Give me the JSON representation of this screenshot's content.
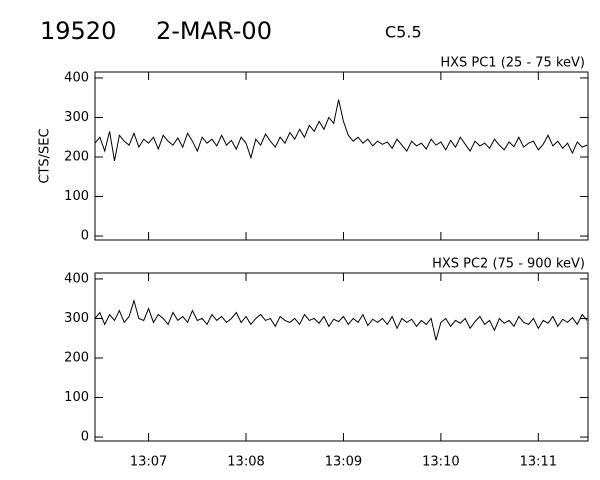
{
  "header": {
    "id": "19520",
    "date": "2-MAR-00",
    "class": "C5.5"
  },
  "chart_data": [
    {
      "type": "line",
      "label": "HXS PC1 (25 - 75 keV)",
      "ylabel": "CTS/SEC",
      "color": "#000000",
      "xlim": [
        6.45,
        11.51
      ],
      "xticks": [
        7,
        8,
        9,
        10,
        11
      ],
      "show_xtick_labels": false,
      "ylim": [
        -10,
        415
      ],
      "yticks": [
        0,
        100,
        200,
        300,
        400
      ],
      "x": [
        6.45,
        6.5,
        6.55,
        6.6,
        6.65,
        6.7,
        6.75,
        6.8,
        6.85,
        6.9,
        6.95,
        7.0,
        7.05,
        7.1,
        7.15,
        7.2,
        7.25,
        7.3,
        7.35,
        7.4,
        7.45,
        7.5,
        7.55,
        7.6,
        7.65,
        7.7,
        7.75,
        7.8,
        7.85,
        7.9,
        7.95,
        8.0,
        8.05,
        8.1,
        8.15,
        8.2,
        8.25,
        8.3,
        8.35,
        8.4,
        8.45,
        8.5,
        8.55,
        8.6,
        8.65,
        8.7,
        8.75,
        8.8,
        8.85,
        8.9,
        8.95,
        9.0,
        9.05,
        9.1,
        9.15,
        9.2,
        9.25,
        9.3,
        9.35,
        9.4,
        9.45,
        9.5,
        9.55,
        9.6,
        9.65,
        9.7,
        9.75,
        9.8,
        9.85,
        9.9,
        9.95,
        10.0,
        10.05,
        10.1,
        10.15,
        10.2,
        10.25,
        10.3,
        10.35,
        10.4,
        10.45,
        10.5,
        10.55,
        10.6,
        10.65,
        10.7,
        10.75,
        10.8,
        10.85,
        10.9,
        10.95,
        11.0,
        11.05,
        11.1,
        11.15,
        11.2,
        11.25,
        11.3,
        11.35,
        11.4,
        11.45,
        11.5
      ],
      "values": [
        235,
        250,
        215,
        265,
        190,
        255,
        240,
        230,
        260,
        225,
        245,
        235,
        250,
        220,
        255,
        240,
        230,
        248,
        225,
        260,
        240,
        215,
        250,
        235,
        245,
        228,
        255,
        230,
        242,
        220,
        250,
        235,
        198,
        245,
        230,
        258,
        240,
        225,
        250,
        235,
        262,
        245,
        270,
        250,
        280,
        265,
        290,
        270,
        300,
        285,
        345,
        290,
        255,
        240,
        250,
        235,
        245,
        228,
        240,
        232,
        238,
        222,
        245,
        230,
        215,
        240,
        228,
        235,
        220,
        245,
        230,
        238,
        218,
        242,
        225,
        250,
        232,
        215,
        240,
        228,
        235,
        222,
        245,
        230,
        218,
        238,
        226,
        250,
        225,
        235,
        240,
        218,
        232,
        255,
        228,
        240,
        222,
        235,
        210,
        238,
        225,
        230
      ]
    },
    {
      "type": "line",
      "label": "HXS PC2 (75 - 900 keV)",
      "color": "#000000",
      "xlim": [
        6.45,
        11.51
      ],
      "xticks": [
        {
          "value": 7,
          "label": "13:07"
        },
        {
          "value": 8,
          "label": "13:08"
        },
        {
          "value": 9,
          "label": "13:09"
        },
        {
          "value": 10,
          "label": "13:10"
        },
        {
          "value": 11,
          "label": "13:11"
        }
      ],
      "show_xtick_labels": true,
      "ylim": [
        -10,
        415
      ],
      "yticks": [
        0,
        100,
        200,
        300,
        400
      ],
      "x": [
        6.45,
        6.5,
        6.55,
        6.6,
        6.65,
        6.7,
        6.75,
        6.8,
        6.85,
        6.9,
        6.95,
        7.0,
        7.05,
        7.1,
        7.15,
        7.2,
        7.25,
        7.3,
        7.35,
        7.4,
        7.45,
        7.5,
        7.55,
        7.6,
        7.65,
        7.7,
        7.75,
        7.8,
        7.85,
        7.9,
        7.95,
        8.0,
        8.05,
        8.1,
        8.15,
        8.2,
        8.25,
        8.3,
        8.35,
        8.4,
        8.45,
        8.5,
        8.55,
        8.6,
        8.65,
        8.7,
        8.75,
        8.8,
        8.85,
        8.9,
        8.95,
        9.0,
        9.05,
        9.1,
        9.15,
        9.2,
        9.25,
        9.3,
        9.35,
        9.4,
        9.45,
        9.5,
        9.55,
        9.6,
        9.65,
        9.7,
        9.75,
        9.8,
        9.85,
        9.9,
        9.95,
        10.0,
        10.05,
        10.1,
        10.15,
        10.2,
        10.25,
        10.3,
        10.35,
        10.4,
        10.45,
        10.5,
        10.55,
        10.6,
        10.65,
        10.7,
        10.75,
        10.8,
        10.85,
        10.9,
        10.95,
        11.0,
        11.05,
        11.1,
        11.15,
        11.2,
        11.25,
        11.3,
        11.35,
        11.4,
        11.45,
        11.5
      ],
      "values": [
        300,
        315,
        285,
        310,
        295,
        320,
        290,
        305,
        345,
        300,
        295,
        325,
        290,
        310,
        300,
        285,
        315,
        295,
        305,
        290,
        320,
        295,
        300,
        285,
        310,
        295,
        305,
        290,
        300,
        315,
        290,
        305,
        285,
        300,
        310,
        295,
        300,
        280,
        305,
        295,
        290,
        300,
        285,
        310,
        295,
        300,
        288,
        305,
        280,
        298,
        292,
        305,
        285,
        300,
        290,
        310,
        282,
        298,
        290,
        300,
        285,
        305,
        275,
        300,
        290,
        298,
        280,
        295,
        285,
        300,
        245,
        290,
        300,
        280,
        295,
        288,
        300,
        275,
        292,
        305,
        285,
        295,
        270,
        300,
        288,
        295,
        280,
        305,
        290,
        285,
        300,
        275,
        295,
        288,
        305,
        280,
        298,
        290,
        302,
        285,
        310,
        295
      ]
    }
  ]
}
